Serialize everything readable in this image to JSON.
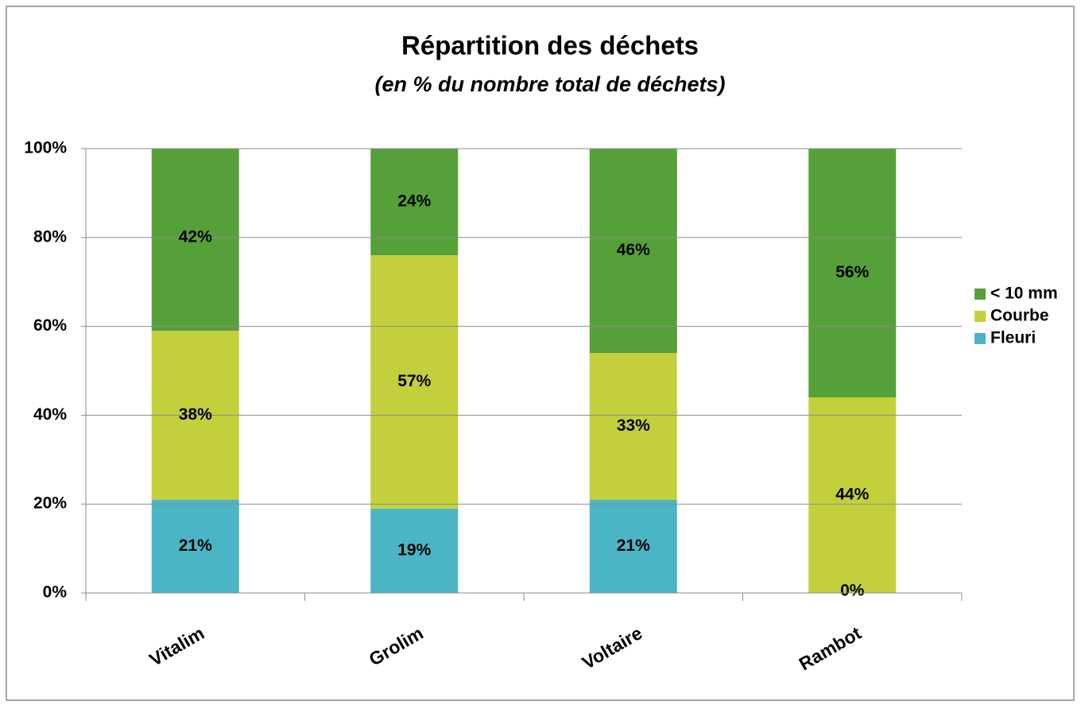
{
  "chart_data": {
    "type": "stacked_bar",
    "title": "Répartition des déchets",
    "subtitle": "(en % du nombre total de déchets)",
    "categories": [
      "Vitalim",
      "Grolim",
      "Voltaire",
      "Rambot"
    ],
    "series": [
      {
        "name": "Fleuri",
        "color": "#4bb5c5",
        "values": [
          21,
          19,
          21,
          0
        ],
        "value_labels": [
          "21%",
          "19%",
          "21%",
          "0%"
        ]
      },
      {
        "name": "Courbe",
        "color": "#c3d03c",
        "values": [
          38,
          57,
          33,
          44
        ],
        "value_labels": [
          "38%",
          "57%",
          "33%",
          "44%"
        ]
      },
      {
        "name": "< 10 mm",
        "color": "#56a03a",
        "values": [
          42,
          24,
          46,
          56
        ],
        "value_labels": [
          "42%",
          "24%",
          "46%",
          "56%"
        ]
      }
    ],
    "ylim": [
      0,
      100
    ],
    "yticks": [
      {
        "value": 0,
        "label": "0%"
      },
      {
        "value": 20,
        "label": "20%"
      },
      {
        "value": 40,
        "label": "40%"
      },
      {
        "value": 60,
        "label": "60%"
      },
      {
        "value": 80,
        "label": "80%"
      },
      {
        "value": 100,
        "label": "100%"
      }
    ],
    "grid": true,
    "legend": "right"
  }
}
